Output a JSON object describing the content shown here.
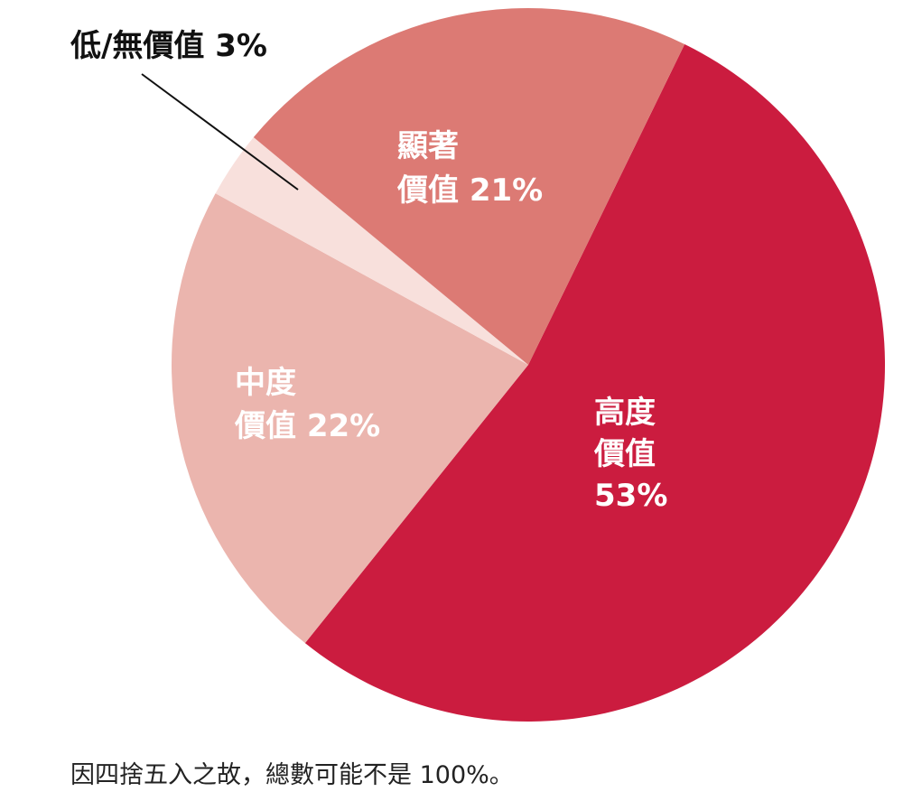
{
  "chart_data": {
    "type": "pie",
    "slices": [
      {
        "label": "高度價值",
        "value": 53,
        "value_label": "53%",
        "color": "#cb1c3f"
      },
      {
        "label": "中度價值",
        "value": 22,
        "value_label": "22%",
        "color": "#ebb5ae"
      },
      {
        "label": "低/無價值",
        "value": 3,
        "value_label": "3%",
        "color": "#f8e0dc"
      },
      {
        "label": "顯著價值",
        "value": 21,
        "value_label": "21%",
        "color": "#dc7a74"
      }
    ],
    "labels": {
      "high_line1": "高度",
      "high_line2": "價值",
      "high_line3": "53%",
      "medium_line1": "中度",
      "medium_line2": "價值 22%",
      "low_text": "低/無價值 3%",
      "significant_line1": "顯著",
      "significant_line2": "價值 21%"
    }
  },
  "footnote": "因四捨五入之故，總數可能不是 100%。"
}
